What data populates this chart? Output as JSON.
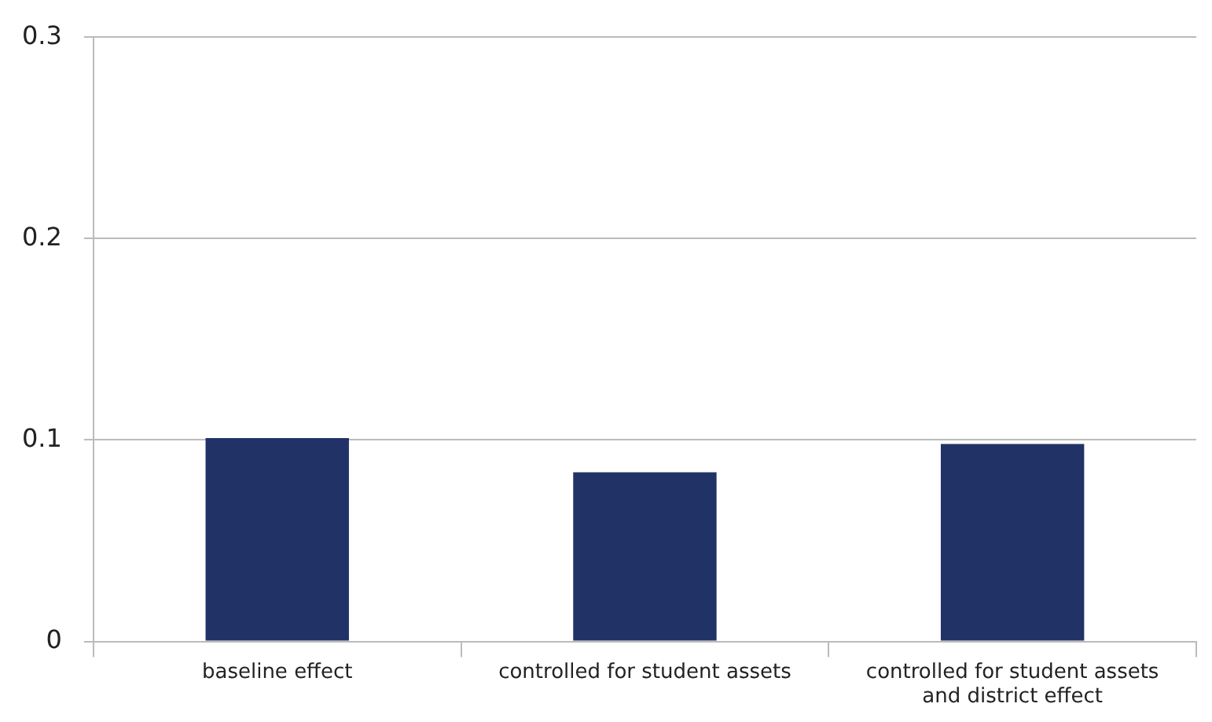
{
  "chart_data": {
    "type": "bar",
    "categories": [
      "baseline effect",
      "controlled for student assets",
      "controlled for student assets and district effect"
    ],
    "values": [
      0.101,
      0.084,
      0.098
    ],
    "color": "#213366",
    "ylim": [
      0,
      0.3
    ],
    "yticks": [
      0,
      0.1,
      0.2,
      0.3
    ],
    "grid": "y",
    "legend": false
  }
}
